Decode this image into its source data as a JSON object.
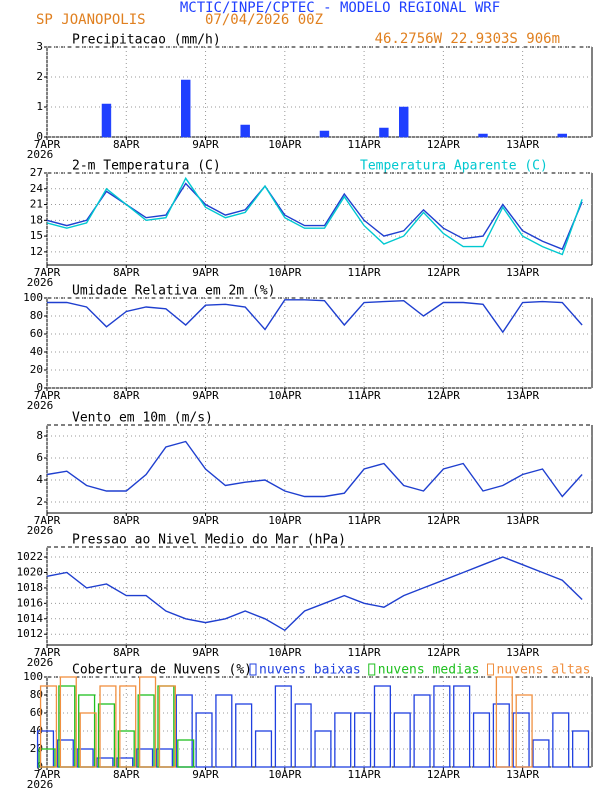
{
  "header": {
    "title": "MCTIC/INPE/CPTEC - MODELO REGIONAL WRF",
    "location": "SP JOANOPOLIS",
    "run": "07/04/2026 00Z",
    "coords": "46.2756W 22.9303S 906m"
  },
  "chart_data": [
    {
      "type": "bar",
      "title": "Precipitacao (mm/h)",
      "x_year": "2026",
      "x": [
        0,
        6,
        12,
        18,
        24,
        30,
        36,
        42,
        48,
        54,
        60,
        66,
        72,
        78,
        84,
        90,
        96,
        102,
        108,
        114,
        120,
        126,
        132,
        138,
        144,
        150,
        156,
        162
      ],
      "xlim": [
        0,
        165
      ],
      "xticks": [
        {
          "value": 0,
          "label": "7APR"
        },
        {
          "value": 24,
          "label": "8APR"
        },
        {
          "value": 48,
          "label": "9APR"
        },
        {
          "value": 72,
          "label": "10APR"
        },
        {
          "value": 96,
          "label": "11APR"
        },
        {
          "value": 120,
          "label": "12APR"
        },
        {
          "value": 144,
          "label": "13APR"
        }
      ],
      "ylim": [
        0,
        3
      ],
      "yticks": [
        0,
        1,
        2,
        3
      ],
      "grid": true,
      "series": [
        {
          "color": "#1f3fff",
          "values": [
            0,
            0,
            0,
            1.1,
            0,
            0,
            0,
            1.9,
            0,
            0,
            0.4,
            0,
            0,
            0,
            0.2,
            0,
            0,
            0.3,
            1.0,
            0,
            0,
            0,
            0.1,
            0,
            0,
            0,
            0.1,
            0
          ]
        }
      ]
    },
    {
      "type": "line",
      "title": "2-m Temperatura (C)",
      "x_year": "2026",
      "x": [
        0,
        6,
        12,
        18,
        24,
        30,
        36,
        42,
        48,
        54,
        60,
        66,
        72,
        78,
        84,
        90,
        96,
        102,
        108,
        114,
        120,
        126,
        132,
        138,
        144,
        150,
        156,
        162
      ],
      "xlim": [
        0,
        165
      ],
      "xticks": [
        {
          "value": 0,
          "label": "7APR"
        },
        {
          "value": 24,
          "label": "8APR"
        },
        {
          "value": 48,
          "label": "9APR"
        },
        {
          "value": 72,
          "label": "10APR"
        },
        {
          "value": 96,
          "label": "11APR"
        },
        {
          "value": 120,
          "label": "12APR"
        },
        {
          "value": 144,
          "label": "13APR"
        }
      ],
      "ylim": [
        9.5,
        27
      ],
      "yticks": [
        12,
        15,
        18,
        21,
        24,
        27
      ],
      "grid": true,
      "series": [
        {
          "color": "#1f3fcf",
          "values": [
            18,
            17,
            18,
            23.5,
            21,
            18.5,
            19,
            25,
            21,
            19,
            20,
            24.5,
            19,
            17,
            17,
            23,
            18,
            15,
            16,
            20,
            16.5,
            14.5,
            15,
            21,
            16,
            14,
            12.5,
            21.5
          ]
        },
        {
          "name": "Temperatura Aparente (C)",
          "color": "#00c8d0",
          "values": [
            17.5,
            16.5,
            17.5,
            24,
            21,
            18,
            18.5,
            26,
            20.5,
            18.5,
            19.5,
            24.5,
            18.5,
            16.5,
            16.5,
            22.5,
            17,
            13.5,
            15,
            19.5,
            15.5,
            13,
            13,
            20.5,
            15,
            13,
            11.5,
            22
          ]
        }
      ]
    },
    {
      "type": "line",
      "title": "Umidade Relativa em 2m (%)",
      "x_year": "2026",
      "x": [
        0,
        6,
        12,
        18,
        24,
        30,
        36,
        42,
        48,
        54,
        60,
        66,
        72,
        78,
        84,
        90,
        96,
        102,
        108,
        114,
        120,
        126,
        132,
        138,
        144,
        150,
        156,
        162
      ],
      "xlim": [
        0,
        165
      ],
      "xticks": [
        {
          "value": 0,
          "label": "7APR"
        },
        {
          "value": 24,
          "label": "8APR"
        },
        {
          "value": 48,
          "label": "9APR"
        },
        {
          "value": 72,
          "label": "10APR"
        },
        {
          "value": 96,
          "label": "11APR"
        },
        {
          "value": 120,
          "label": "12APR"
        },
        {
          "value": 144,
          "label": "13APR"
        }
      ],
      "ylim": [
        0,
        100
      ],
      "yticks": [
        0,
        20,
        40,
        60,
        80,
        100
      ],
      "grid": true,
      "series": [
        {
          "color": "#1f3fcf",
          "values": [
            95,
            95,
            90,
            68,
            85,
            90,
            88,
            70,
            92,
            93,
            90,
            65,
            98,
            98,
            97,
            70,
            95,
            96,
            97,
            80,
            95,
            95,
            93,
            62,
            95,
            96,
            95,
            70
          ]
        }
      ]
    },
    {
      "type": "line",
      "title": "Vento em 10m (m/s)",
      "x_year": "2026",
      "x": [
        0,
        6,
        12,
        18,
        24,
        30,
        36,
        42,
        48,
        54,
        60,
        66,
        72,
        78,
        84,
        90,
        96,
        102,
        108,
        114,
        120,
        126,
        132,
        138,
        144,
        150,
        156,
        162
      ],
      "xlim": [
        0,
        165
      ],
      "xticks": [
        {
          "value": 0,
          "label": "7APR"
        },
        {
          "value": 24,
          "label": "8APR"
        },
        {
          "value": 48,
          "label": "9APR"
        },
        {
          "value": 72,
          "label": "10APR"
        },
        {
          "value": 96,
          "label": "11APR"
        },
        {
          "value": 120,
          "label": "12APR"
        },
        {
          "value": 144,
          "label": "13APR"
        }
      ],
      "ylim": [
        1,
        9
      ],
      "yticks": [
        2,
        4,
        6,
        8
      ],
      "grid": true,
      "series": [
        {
          "color": "#1f3fcf",
          "values": [
            4.5,
            4.8,
            3.5,
            3,
            3,
            4.5,
            7,
            7.5,
            5,
            3.5,
            3.8,
            4,
            3,
            2.5,
            2.5,
            2.8,
            5,
            5.5,
            3.5,
            3,
            5,
            5.5,
            3,
            3.5,
            4.5,
            5,
            2.5,
            4.5
          ]
        }
      ]
    },
    {
      "type": "line",
      "title": "Pressao ao Nivel Medio do Mar (hPa)",
      "x_year": "2026",
      "x": [
        0,
        6,
        12,
        18,
        24,
        30,
        36,
        42,
        48,
        54,
        60,
        66,
        72,
        78,
        84,
        90,
        96,
        102,
        108,
        114,
        120,
        126,
        132,
        138,
        144,
        150,
        156,
        162
      ],
      "xlim": [
        0,
        165
      ],
      "xticks": [
        {
          "value": 0,
          "label": "7APR"
        },
        {
          "value": 24,
          "label": "8APR"
        },
        {
          "value": 48,
          "label": "9APR"
        },
        {
          "value": 72,
          "label": "10APR"
        },
        {
          "value": 96,
          "label": "11APR"
        },
        {
          "value": 120,
          "label": "12APR"
        },
        {
          "value": 144,
          "label": "13APR"
        }
      ],
      "ylim": [
        1010.6,
        1023.3
      ],
      "yticks": [
        1012,
        1014,
        1016,
        1018,
        1020,
        1022
      ],
      "grid": true,
      "series": [
        {
          "color": "#1f3fcf",
          "values": [
            1019.5,
            1020,
            1018,
            1018.5,
            1017,
            1017,
            1015,
            1014,
            1013.5,
            1014,
            1015,
            1014,
            1012.5,
            1015,
            1016,
            1017,
            1016,
            1015.5,
            1017,
            1018,
            1019,
            1020,
            1021,
            1022,
            1021,
            1020,
            1019,
            1016.5
          ]
        }
      ]
    },
    {
      "type": "bar",
      "title": "Cobertura de Nuvens (%)",
      "x_year": "2026",
      "x": [
        0,
        6,
        12,
        18,
        24,
        30,
        36,
        42,
        48,
        54,
        60,
        66,
        72,
        78,
        84,
        90,
        96,
        102,
        108,
        114,
        120,
        126,
        132,
        138,
        144,
        150,
        156,
        162
      ],
      "xlim": [
        0,
        165
      ],
      "xticks": [
        {
          "value": 0,
          "label": "7APR"
        },
        {
          "value": 24,
          "label": "8APR"
        },
        {
          "value": 48,
          "label": "9APR"
        },
        {
          "value": 72,
          "label": "10APR"
        },
        {
          "value": 96,
          "label": "11APR"
        },
        {
          "value": 120,
          "label": "12APR"
        },
        {
          "value": 144,
          "label": "13APR"
        }
      ],
      "ylim": [
        0,
        100
      ],
      "yticks": [
        0,
        20,
        40,
        60,
        80,
        100
      ],
      "grid": true,
      "series": [
        {
          "name": "nuvens baixas",
          "color": "#2040e0",
          "values": [
            40,
            30,
            20,
            10,
            10,
            20,
            20,
            80,
            60,
            80,
            70,
            40,
            90,
            70,
            40,
            60,
            60,
            90,
            60,
            80,
            90,
            90,
            60,
            70,
            60,
            30,
            60,
            40
          ]
        },
        {
          "name": "nuvens medias",
          "color": "#20c020",
          "values": [
            20,
            90,
            80,
            70,
            40,
            80,
            90,
            30,
            0,
            0,
            0,
            0,
            0,
            0,
            0,
            0,
            0,
            0,
            0,
            0,
            0,
            0,
            0,
            0,
            0,
            0,
            0,
            0
          ]
        },
        {
          "name": "nuvens altas",
          "color": "#f09040",
          "values": [
            90,
            100,
            60,
            90,
            90,
            100,
            90,
            0,
            0,
            0,
            0,
            0,
            0,
            0,
            0,
            0,
            0,
            0,
            0,
            0,
            0,
            0,
            0,
            100,
            80,
            0,
            0,
            0
          ]
        }
      ]
    }
  ]
}
